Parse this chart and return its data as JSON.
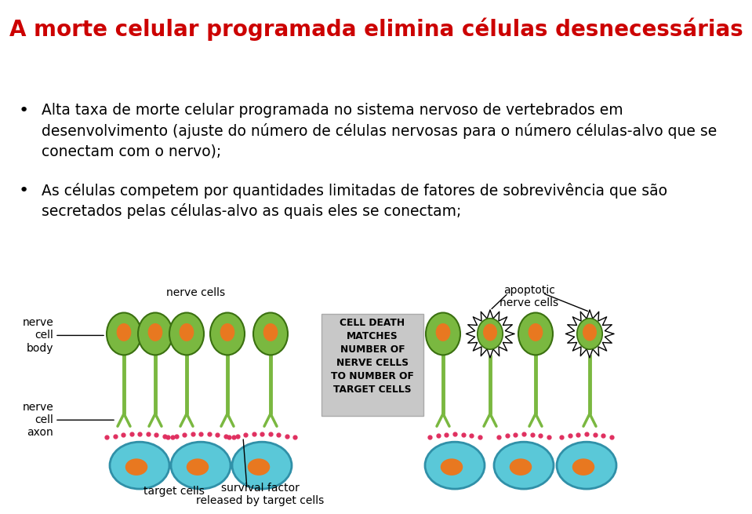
{
  "title": "A morte celular programada elimina células desnecessárias",
  "title_color": "#CC0000",
  "title_fontsize": 20,
  "bullet1_line1": "Alta taxa de morte celular programada no sistema nervoso de vertebrados em",
  "bullet1_line2": "desenvolvimento (ajuste do número de células nervosas para o número células-alvo que se",
  "bullet1_line3": "conectam com o nervo);",
  "bullet2_line1": "As células competem por quantidades limitadas de fatores de sobrevivência que são",
  "bullet2_line2": "secretados pelas células-alvo as quais eles se conectam;",
  "text_color": "#000000",
  "text_fontsize": 13.5,
  "bg_color": "#ffffff",
  "body_green": "#7ab840",
  "nucleus_orange": "#e87820",
  "target_blue": "#5ac8d8",
  "target_outline": "#3090a8",
  "dot_red": "#e03060",
  "gray_box": "#c8c8c8",
  "arrow_color": "#000000",
  "label_fontsize": 10,
  "diagram_label_fontsize": 10,
  "cell_death_fontsize": 9
}
